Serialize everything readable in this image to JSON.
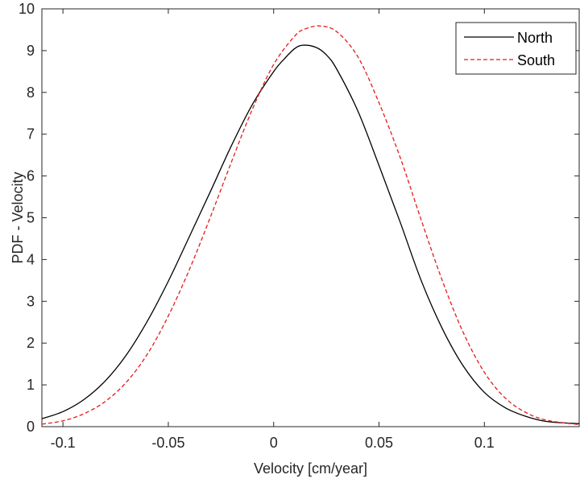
{
  "chart_data": {
    "type": "line",
    "title": "",
    "xlabel": "Velocity [cm/year]",
    "ylabel": "PDF - Velocity",
    "xlim": [
      -0.11,
      0.145
    ],
    "ylim": [
      0,
      10
    ],
    "x_ticks": [
      -0.1,
      -0.05,
      0,
      0.05,
      0.1
    ],
    "x_tick_labels": [
      "-0.1",
      "-0.05",
      "0",
      "0.05",
      "0.1"
    ],
    "y_ticks": [
      0,
      1,
      2,
      3,
      4,
      5,
      6,
      7,
      8,
      9,
      10
    ],
    "y_tick_labels": [
      "0",
      "1",
      "2",
      "3",
      "4",
      "5",
      "6",
      "7",
      "8",
      "9",
      "10"
    ],
    "grid": false,
    "legend_position": "top-right",
    "series": [
      {
        "name": "North",
        "color": "#000000",
        "dash": "solid",
        "x": [
          -0.11,
          -0.1,
          -0.09,
          -0.08,
          -0.07,
          -0.06,
          -0.05,
          -0.04,
          -0.03,
          -0.02,
          -0.01,
          0,
          0.005,
          0.01,
          0.014,
          0.02,
          0.025,
          0.03,
          0.04,
          0.05,
          0.06,
          0.07,
          0.08,
          0.09,
          0.1,
          0.11,
          0.12,
          0.13,
          0.145
        ],
        "y": [
          0.19,
          0.36,
          0.65,
          1.09,
          1.71,
          2.52,
          3.48,
          4.55,
          5.63,
          6.73,
          7.72,
          8.5,
          8.8,
          9.05,
          9.13,
          9.08,
          8.9,
          8.55,
          7.55,
          6.25,
          4.9,
          3.5,
          2.35,
          1.45,
          0.82,
          0.45,
          0.24,
          0.12,
          0.07
        ]
      },
      {
        "name": "South",
        "color": "#e41a1c",
        "dash": "dashed",
        "x": [
          -0.11,
          -0.1,
          -0.09,
          -0.08,
          -0.07,
          -0.06,
          -0.05,
          -0.04,
          -0.03,
          -0.02,
          -0.01,
          0,
          0.01,
          0.015,
          0.022,
          0.03,
          0.04,
          0.05,
          0.06,
          0.07,
          0.08,
          0.09,
          0.1,
          0.11,
          0.12,
          0.13,
          0.145
        ],
        "y": [
          0.06,
          0.14,
          0.31,
          0.6,
          1.06,
          1.73,
          2.65,
          3.76,
          5.02,
          6.34,
          7.61,
          8.67,
          9.35,
          9.52,
          9.59,
          9.45,
          8.85,
          7.75,
          6.45,
          4.95,
          3.5,
          2.25,
          1.3,
          0.68,
          0.33,
          0.15,
          0.05
        ]
      }
    ]
  }
}
